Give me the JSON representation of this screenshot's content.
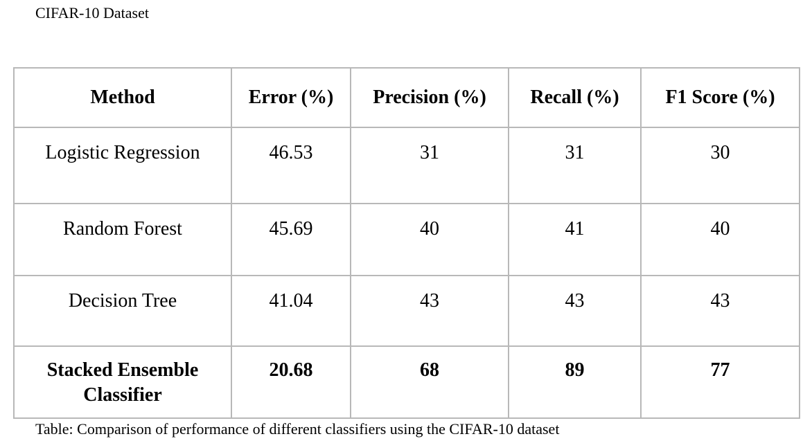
{
  "heading": "CIFAR-10 Dataset",
  "table": {
    "columns": [
      "Method",
      "Error (%)",
      "Precision (%)",
      "Recall (%)",
      "F1 Score (%)"
    ],
    "rows": [
      {
        "method": "Logistic Regression",
        "error": "46.53",
        "precision": "31",
        "recall": "31",
        "f1": "30"
      },
      {
        "method": "Random Forest",
        "error": "45.69",
        "precision": "40",
        "recall": "41",
        "f1": "40"
      },
      {
        "method": "Decision Tree",
        "error": "41.04",
        "precision": "43",
        "recall": "43",
        "f1": "43"
      },
      {
        "method": "Stacked Ensemble Classifier",
        "error": "20.68",
        "precision": "68",
        "recall": "89",
        "f1": "77",
        "bold": true
      }
    ]
  },
  "caption": "Table: Comparison of performance of different classifiers using the CIFAR-10 dataset",
  "colors": {
    "text": "#000000",
    "border": "#b8b8b8",
    "background": "#ffffff"
  }
}
